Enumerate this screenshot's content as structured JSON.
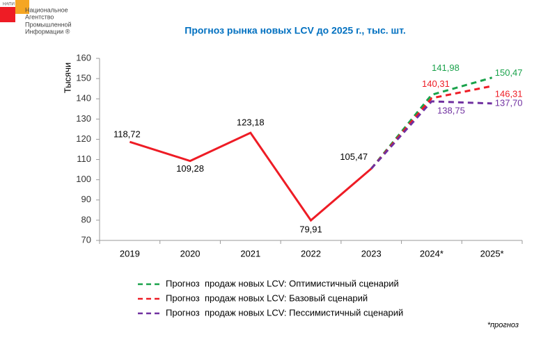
{
  "logo": {
    "short": "НАПИ",
    "lines": [
      "Национальное",
      "Агентство",
      "Промышленной",
      "Информации ®"
    ]
  },
  "footnote": "*прогноз",
  "chart_data": {
    "type": "line",
    "title": "Прогноз рынка новых LCV до 2025 г., тыс. шт.",
    "y_label": "Тысячи",
    "categories": [
      "2019",
      "2020",
      "2021",
      "2022",
      "2023",
      "2024*",
      "2025*"
    ],
    "ylim": [
      70,
      160
    ],
    "yticks": [
      70,
      80,
      90,
      100,
      110,
      120,
      130,
      140,
      150,
      160
    ],
    "series": [
      {
        "color": "#ee1c25",
        "dashed": false,
        "values": [
          118.72,
          109.28,
          123.18,
          79.91,
          105.47,
          null,
          null
        ],
        "value_labels": [
          "118,72",
          "109,28",
          "123,18",
          "79,91",
          "105,47",
          null,
          null
        ]
      },
      {
        "name": "Прогноз  продаж новых LCV: Оптимистичный сценарий",
        "color": "#1aa24b",
        "dashed": true,
        "values": [
          null,
          null,
          null,
          null,
          105.47,
          141.98,
          150.47
        ],
        "value_labels": [
          null,
          null,
          null,
          null,
          null,
          "141,98",
          "150,47"
        ]
      },
      {
        "name": "Прогноз  продаж новых LCV: Базовый сценарий",
        "color": "#ee1c25",
        "dashed": true,
        "values": [
          null,
          null,
          null,
          null,
          105.47,
          140.31,
          146.31
        ],
        "value_labels": [
          null,
          null,
          null,
          null,
          null,
          "140,31",
          "146,31"
        ]
      },
      {
        "name": "Прогноз  продаж новых LCV: Пессимистичный сценарий",
        "color": "#7030a0",
        "dashed": true,
        "values": [
          null,
          null,
          null,
          null,
          105.47,
          138.75,
          137.7
        ],
        "value_labels": [
          null,
          null,
          null,
          null,
          null,
          "138,75",
          "137,70"
        ]
      }
    ]
  }
}
